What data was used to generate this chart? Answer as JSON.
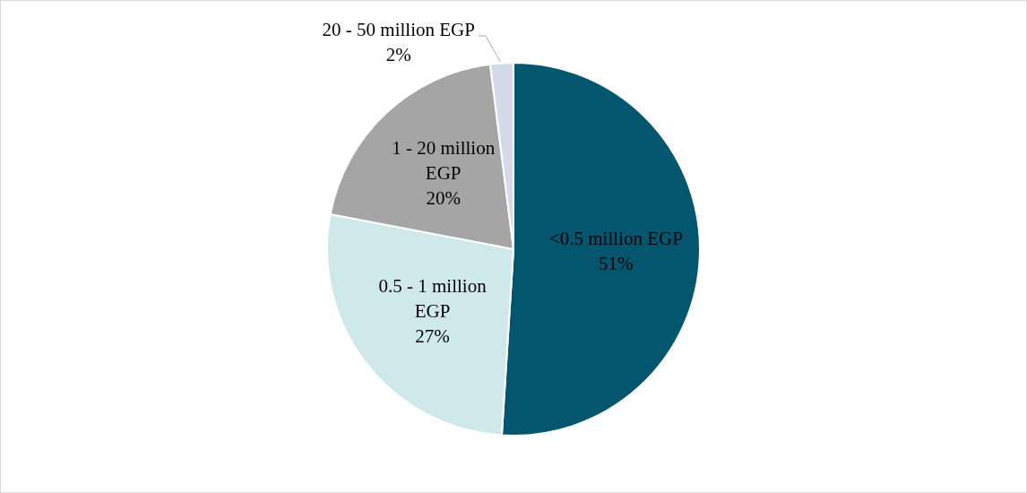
{
  "chart_data": {
    "type": "pie",
    "categories": [
      "<0.5 million EGP",
      "0.5 - 1 million EGP",
      "1 - 20 million EGP",
      "20 - 50 million EGP"
    ],
    "values": [
      51,
      27,
      20,
      2
    ],
    "colors": [
      "#04566e",
      "#cfe8ea",
      "#a5a5a5",
      "#d5dae8"
    ],
    "value_labels": [
      "51%",
      "27%",
      "20%",
      "2%"
    ],
    "legend": false
  }
}
